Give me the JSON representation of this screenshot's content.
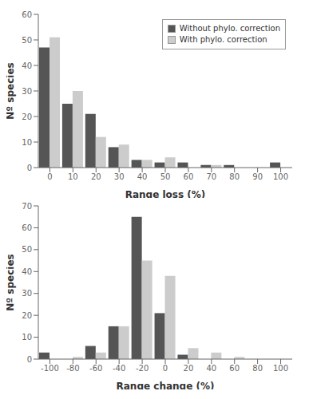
{
  "chart_data": [
    {
      "type": "bar",
      "xlabel": "Range loss (%)",
      "ylabel": "Nº species",
      "x": [
        0,
        10,
        20,
        30,
        40,
        50,
        60,
        70,
        80,
        90,
        100
      ],
      "series": [
        {
          "name": "Without phylo. correction",
          "color": "#555555",
          "values": [
            47,
            25,
            21,
            8,
            3,
            2,
            2,
            1,
            1,
            0,
            2
          ]
        },
        {
          "name": "With phylo. correction",
          "color": "#cccccc",
          "values": [
            51,
            30,
            12,
            9,
            3,
            4,
            0,
            1,
            0,
            0,
            0
          ]
        }
      ],
      "xlim": [
        -5,
        105
      ],
      "xticks": [
        0,
        10,
        20,
        30,
        40,
        50,
        60,
        70,
        80,
        90,
        100
      ],
      "ylim": [
        0,
        60
      ],
      "yticks": [
        0,
        10,
        20,
        30,
        40,
        50,
        60
      ],
      "legend": "upper right",
      "grid": false
    },
    {
      "type": "bar",
      "xlabel": "Range change (%)",
      "ylabel": "Nº species",
      "x": [
        -100,
        -80,
        -60,
        -40,
        -20,
        0,
        20,
        40,
        60,
        80,
        100
      ],
      "series": [
        {
          "color": "#555555",
          "values": [
            3,
            0,
            6,
            15,
            65,
            21,
            2,
            0,
            0,
            0,
            0
          ]
        },
        {
          "color": "#cccccc",
          "values": [
            0,
            1,
            3,
            15,
            45,
            38,
            5,
            3,
            1,
            0,
            0
          ]
        }
      ],
      "xlim": [
        -110,
        110
      ],
      "xticks": [
        -100,
        -80,
        -60,
        -40,
        -20,
        0,
        20,
        40,
        60,
        80,
        100
      ],
      "ylim": [
        0,
        70
      ],
      "yticks": [
        0,
        10,
        20,
        30,
        40,
        50,
        60,
        70
      ],
      "grid": false
    }
  ]
}
